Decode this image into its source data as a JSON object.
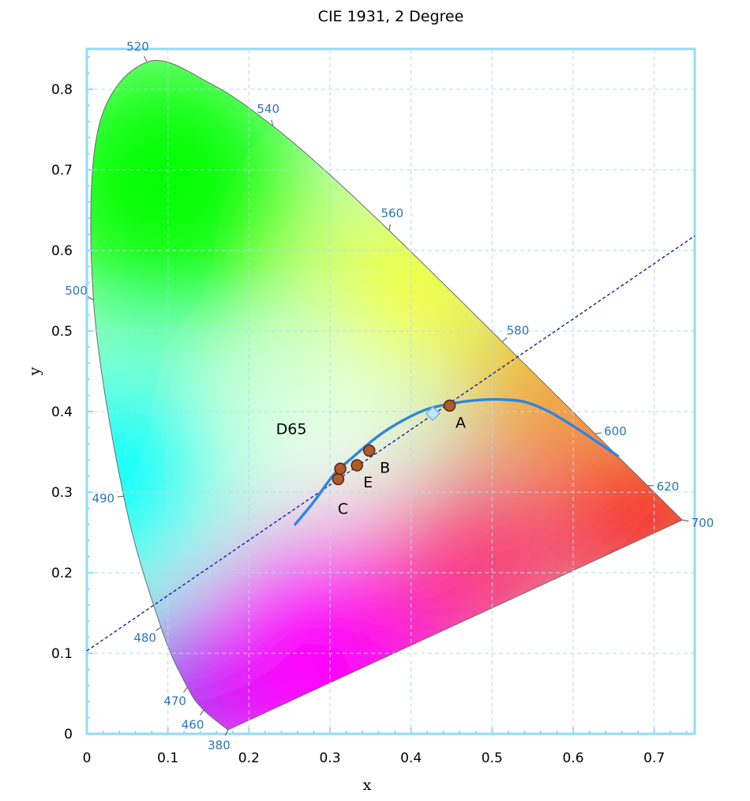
{
  "chart_data": {
    "type": "scatter",
    "title": "CIE 1931, 2 Degree",
    "xlabel": "x",
    "ylabel": "y",
    "xlim": [
      0,
      0.75
    ],
    "ylim": [
      0,
      0.85
    ],
    "x_ticks": [
      "0",
      "0.1",
      "0.2",
      "0.3",
      "0.4",
      "0.5",
      "0.6",
      "0.7"
    ],
    "y_ticks": [
      "0",
      "0.1",
      "0.2",
      "0.3",
      "0.4",
      "0.5",
      "0.6",
      "0.7",
      "0.8"
    ],
    "grid": true,
    "colors": {
      "frame": "#8fdcf5",
      "grid": "#b9d8ef",
      "locus_curve": "#2e86de",
      "line": "#1a1a9c",
      "point": "#b5582a",
      "wavelength_text": "#2e74b5"
    },
    "spectral_locus": [
      {
        "wl": 380,
        "x": 0.1741,
        "y": 0.005
      },
      {
        "wl": 460,
        "x": 0.144,
        "y": 0.0297
      },
      {
        "wl": 470,
        "x": 0.1241,
        "y": 0.0578
      },
      {
        "wl": 480,
        "x": 0.0913,
        "y": 0.1327
      },
      {
        "wl": 490,
        "x": 0.0454,
        "y": 0.295
      },
      {
        "wl": 500,
        "x": 0.0082,
        "y": 0.5384
      },
      {
        "wl": 510,
        "x": 0.0139,
        "y": 0.7502
      },
      {
        "wl": 520,
        "x": 0.0743,
        "y": 0.8338
      },
      {
        "wl": 530,
        "x": 0.1547,
        "y": 0.8059
      },
      {
        "wl": 540,
        "x": 0.2296,
        "y": 0.7543
      },
      {
        "wl": 550,
        "x": 0.3016,
        "y": 0.6923
      },
      {
        "wl": 560,
        "x": 0.3731,
        "y": 0.6245
      },
      {
        "wl": 570,
        "x": 0.4441,
        "y": 0.5547
      },
      {
        "wl": 580,
        "x": 0.5125,
        "y": 0.4866
      },
      {
        "wl": 590,
        "x": 0.5752,
        "y": 0.4242
      },
      {
        "wl": 600,
        "x": 0.627,
        "y": 0.3725
      },
      {
        "wl": 620,
        "x": 0.6915,
        "y": 0.3083
      },
      {
        "wl": 700,
        "x": 0.7347,
        "y": 0.2653
      }
    ],
    "wavelength_labels": [
      {
        "text": "520",
        "wl": 520
      },
      {
        "text": "540",
        "wl": 540
      },
      {
        "text": "560",
        "wl": 560
      },
      {
        "text": "580",
        "wl": 580
      },
      {
        "text": "600",
        "wl": 600
      },
      {
        "text": "620",
        "wl": 620
      },
      {
        "text": "700",
        "wl": 700
      },
      {
        "text": "500",
        "wl": 500
      },
      {
        "text": "490",
        "wl": 490
      },
      {
        "text": "480",
        "wl": 480
      },
      {
        "text": "470",
        "wl": 470
      },
      {
        "text": "460",
        "wl": 460
      },
      {
        "text": "380",
        "wl": 380
      }
    ],
    "planckian_locus": [
      {
        "x": 0.257,
        "y": 0.26
      },
      {
        "x": 0.28,
        "y": 0.288
      },
      {
        "x": 0.305,
        "y": 0.322
      },
      {
        "x": 0.33,
        "y": 0.345
      },
      {
        "x": 0.36,
        "y": 0.37
      },
      {
        "x": 0.39,
        "y": 0.389
      },
      {
        "x": 0.42,
        "y": 0.403
      },
      {
        "x": 0.45,
        "y": 0.41
      },
      {
        "x": 0.48,
        "y": 0.414
      },
      {
        "x": 0.51,
        "y": 0.415
      },
      {
        "x": 0.54,
        "y": 0.412
      },
      {
        "x": 0.57,
        "y": 0.4
      },
      {
        "x": 0.6,
        "y": 0.382
      },
      {
        "x": 0.63,
        "y": 0.362
      },
      {
        "x": 0.655,
        "y": 0.345
      }
    ],
    "reference_line": {
      "x1": 0.0,
      "y1": 0.103,
      "x2": 0.75,
      "y2": 0.618
    },
    "points": [
      {
        "label": "A",
        "x": 0.4476,
        "y": 0.4074,
        "marker": "circle"
      },
      {
        "label": "B",
        "x": 0.3484,
        "y": 0.3516,
        "marker": "circle"
      },
      {
        "label": "C",
        "x": 0.3101,
        "y": 0.3162,
        "marker": "circle"
      },
      {
        "label": "D65",
        "x": 0.3127,
        "y": 0.329,
        "marker": "circle"
      },
      {
        "label": "E",
        "x": 0.3333,
        "y": 0.3333,
        "marker": "circle"
      },
      {
        "label": "",
        "x": 0.4268,
        "y": 0.3975,
        "marker": "diamond"
      }
    ]
  }
}
